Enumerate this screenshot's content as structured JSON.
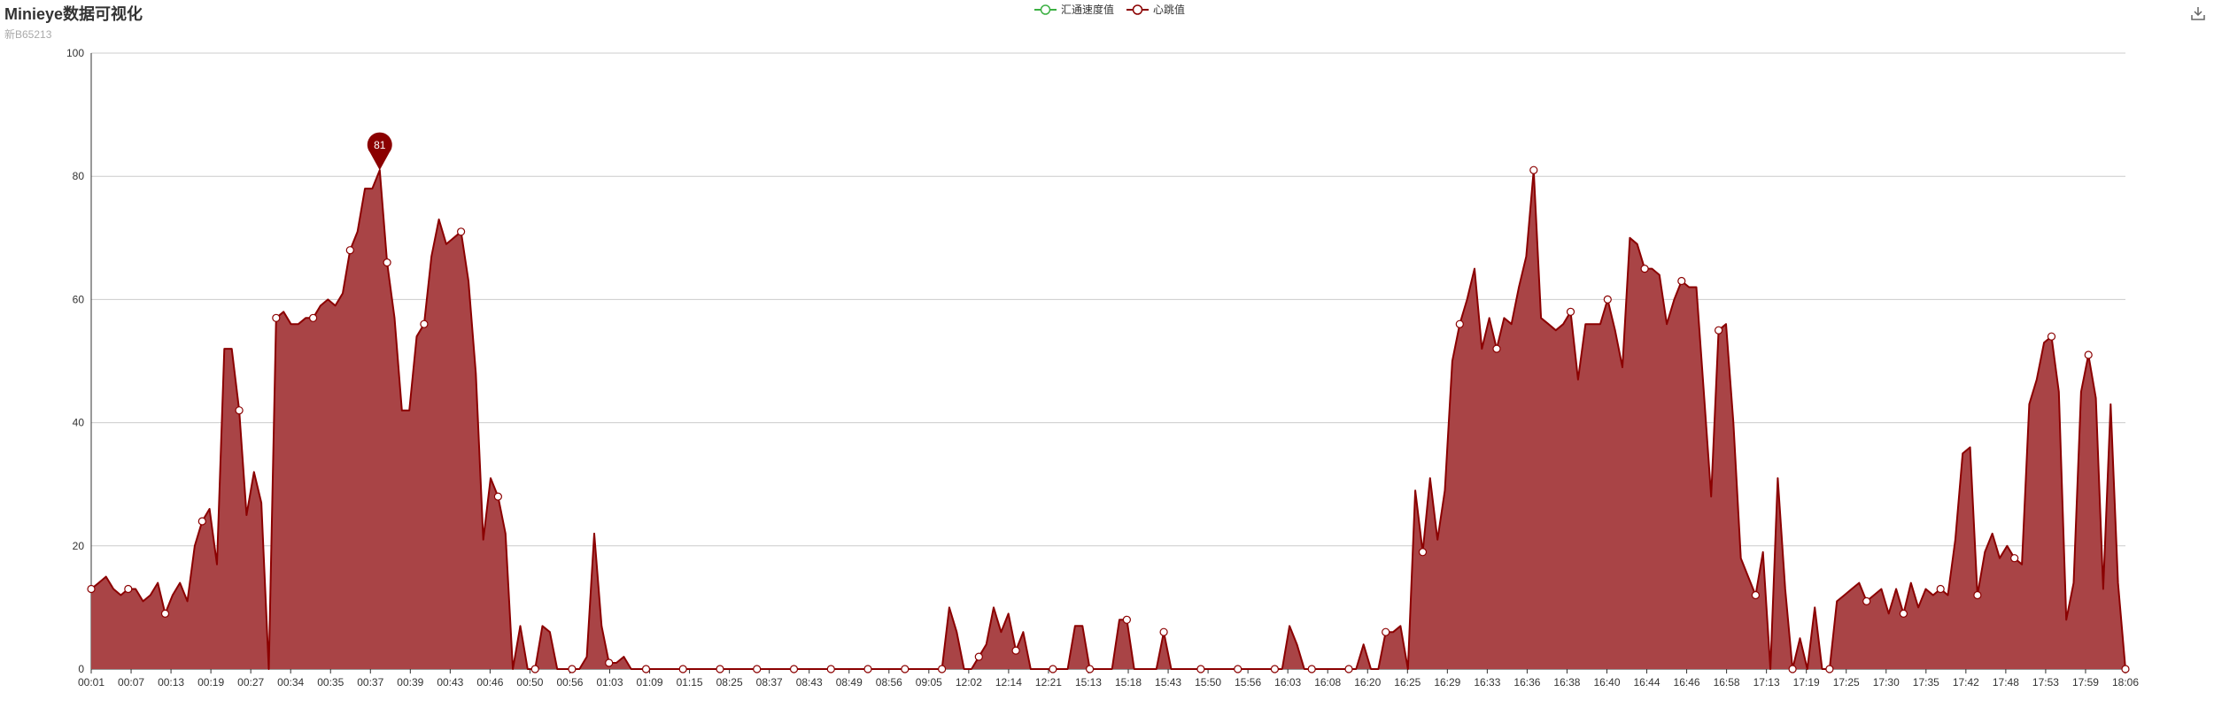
{
  "title": "Minieye数据可视化",
  "subtitle": "新B65213",
  "legend": [
    {
      "name": "汇通速度值",
      "color": "#3cb043"
    },
    {
      "name": "心跳值",
      "color": "#8b0000"
    }
  ],
  "toolbox": {
    "icon": "download-icon"
  },
  "colors": {
    "series": "#8b0000",
    "area": "#a94446",
    "grid": "#cccccc",
    "axis": "#333333"
  },
  "chart_data": {
    "type": "area",
    "title": "Minieye数据可视化",
    "subtitle": "新B65213",
    "ylim": [
      0,
      100
    ],
    "yticks": [
      0,
      20,
      40,
      60,
      80,
      100
    ],
    "grid": true,
    "legend_position": "top-center",
    "xticklabels": [
      "00:01",
      "00:07",
      "00:13",
      "00:19",
      "00:27",
      "00:34",
      "00:35",
      "00:37",
      "00:39",
      "00:43",
      "00:46",
      "00:50",
      "00:56",
      "01:03",
      "01:09",
      "01:15",
      "08:25",
      "08:37",
      "08:43",
      "08:49",
      "08:56",
      "09:05",
      "12:02",
      "12:14",
      "12:21",
      "15:13",
      "15:18",
      "15:43",
      "15:50",
      "15:56",
      "16:03",
      "16:08",
      "16:20",
      "16:25",
      "16:29",
      "16:33",
      "16:36",
      "16:38",
      "16:40",
      "16:44",
      "16:46",
      "16:58",
      "17:13",
      "17:19",
      "17:25",
      "17:30",
      "17:35",
      "17:42",
      "17:48",
      "17:53",
      "17:59",
      "18:06"
    ],
    "series": [
      {
        "name": "汇通速度值",
        "values": []
      },
      {
        "name": "心跳值",
        "values": [
          13,
          14,
          15,
          13,
          12,
          13,
          13,
          11,
          12,
          14,
          9,
          12,
          14,
          11,
          20,
          24,
          26,
          17,
          52,
          52,
          42,
          25,
          32,
          27,
          0,
          57,
          58,
          56,
          56,
          57,
          57,
          59,
          60,
          59,
          61,
          68,
          71,
          78,
          78,
          81,
          66,
          57,
          42,
          42,
          54,
          56,
          67,
          73,
          69,
          70,
          71,
          63,
          48,
          21,
          31,
          28,
          22,
          0,
          7,
          0,
          0,
          7,
          6,
          0,
          0,
          0,
          0,
          2,
          22,
          7,
          1,
          1,
          2,
          0,
          0,
          0,
          0,
          0,
          0,
          0,
          0,
          0,
          0,
          0,
          0,
          0,
          0,
          0,
          0,
          0,
          0,
          0,
          0,
          0,
          0,
          0,
          0,
          0,
          0,
          0,
          0,
          0,
          0,
          0,
          0,
          0,
          0,
          0,
          0,
          0,
          0,
          0,
          0,
          0,
          0,
          0,
          10,
          6,
          0,
          0,
          2,
          4,
          10,
          6,
          9,
          3,
          6,
          0,
          0,
          0,
          0,
          0,
          0,
          7,
          7,
          0,
          0,
          0,
          0,
          8,
          8,
          0,
          0,
          0,
          0,
          6,
          0,
          0,
          0,
          0,
          0,
          0,
          0,
          0,
          0,
          0,
          0,
          0,
          0,
          0,
          0,
          0,
          7,
          4,
          0,
          0,
          0,
          0,
          0,
          0,
          0,
          0,
          4,
          0,
          0,
          6,
          6,
          7,
          0,
          29,
          19,
          31,
          21,
          29,
          50,
          56,
          60,
          65,
          52,
          57,
          52,
          57,
          56,
          62,
          67,
          81,
          57,
          56,
          55,
          56,
          58,
          47,
          56,
          56,
          56,
          60,
          55,
          49,
          70,
          69,
          65,
          65,
          64,
          56,
          60,
          63,
          62,
          62,
          45,
          28,
          55,
          56,
          40,
          18,
          15,
          12,
          19,
          0,
          31,
          13,
          0,
          5,
          0,
          10,
          0,
          0,
          11,
          12,
          13,
          14,
          11,
          12,
          13,
          9,
          13,
          9,
          14,
          10,
          13,
          12,
          13,
          12,
          21,
          35,
          36,
          12,
          19,
          22,
          18,
          20,
          18,
          17,
          43,
          47,
          53,
          54,
          45,
          8,
          14,
          45,
          51,
          44,
          13,
          43,
          14,
          0
        ],
        "markpoint": {
          "label": "81",
          "type": "max"
        }
      }
    ]
  }
}
